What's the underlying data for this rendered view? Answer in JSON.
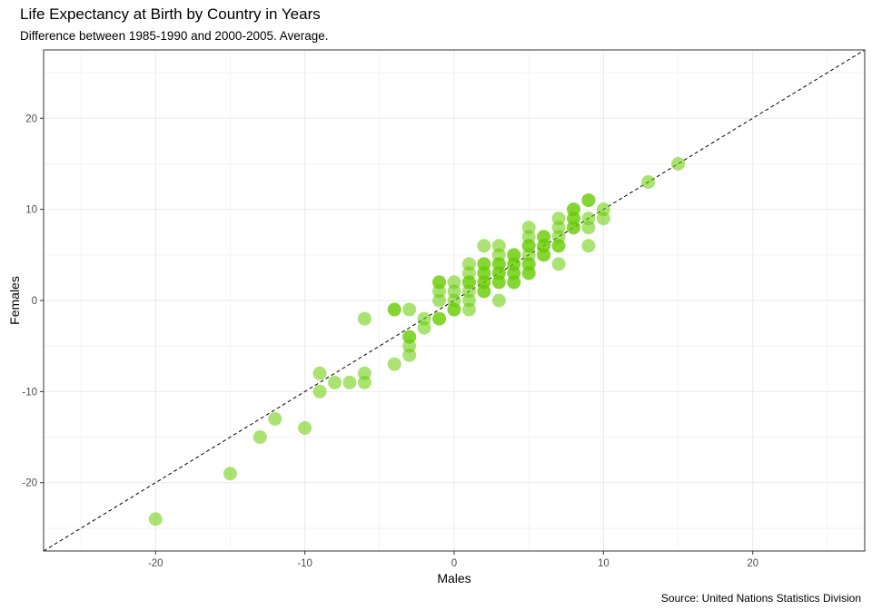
{
  "chart_data": {
    "type": "scatter",
    "title": "Life Expectancy at Birth by Country in Years",
    "subtitle": "Difference between 1985-1990 and 2000-2005. Average.",
    "caption": "Source: United Nations Statistics Division",
    "xlabel": "Males",
    "ylabel": "Females",
    "xlim": [
      -27.5,
      27.5
    ],
    "ylim": [
      -27.5,
      27.5
    ],
    "x_ticks": [
      -20,
      -10,
      0,
      10,
      20
    ],
    "y_ticks": [
      -20,
      -10,
      0,
      10,
      20
    ],
    "grid": true,
    "reference_line": {
      "slope": 1,
      "intercept": 0,
      "style": "dashed"
    },
    "colors": {
      "point": "#66cc00",
      "reference_line": "#000000",
      "grid": "#ebebeb",
      "panel_border": "#333333"
    },
    "point_opacity": 0.55,
    "points": [
      {
        "x": -20,
        "y": -24
      },
      {
        "x": -15,
        "y": -19
      },
      {
        "x": -13,
        "y": -15
      },
      {
        "x": -12,
        "y": -13
      },
      {
        "x": -10,
        "y": -14
      },
      {
        "x": -9,
        "y": -10
      },
      {
        "x": -9,
        "y": -8
      },
      {
        "x": -8,
        "y": -9
      },
      {
        "x": -7,
        "y": -9
      },
      {
        "x": -6,
        "y": -9
      },
      {
        "x": -6,
        "y": -8
      },
      {
        "x": -6,
        "y": -2
      },
      {
        "x": -4,
        "y": -7
      },
      {
        "x": -4,
        "y": -1
      },
      {
        "x": -4,
        "y": -1
      },
      {
        "x": -3,
        "y": -6
      },
      {
        "x": -3,
        "y": -5
      },
      {
        "x": -3,
        "y": -4
      },
      {
        "x": -3,
        "y": -4
      },
      {
        "x": -3,
        "y": -1
      },
      {
        "x": -2,
        "y": -3
      },
      {
        "x": -2,
        "y": -2
      },
      {
        "x": -1,
        "y": -2
      },
      {
        "x": -1,
        "y": -2
      },
      {
        "x": -1,
        "y": 0
      },
      {
        "x": -1,
        "y": 1
      },
      {
        "x": -1,
        "y": 2
      },
      {
        "x": -1,
        "y": 2
      },
      {
        "x": 0,
        "y": -1
      },
      {
        "x": 0,
        "y": -1
      },
      {
        "x": 0,
        "y": 0
      },
      {
        "x": 0,
        "y": 1
      },
      {
        "x": 0,
        "y": 2
      },
      {
        "x": 1,
        "y": -1
      },
      {
        "x": 1,
        "y": 0
      },
      {
        "x": 1,
        "y": 1
      },
      {
        "x": 1,
        "y": 2
      },
      {
        "x": 1,
        "y": 2
      },
      {
        "x": 1,
        "y": 3
      },
      {
        "x": 1,
        "y": 4
      },
      {
        "x": 2,
        "y": 1
      },
      {
        "x": 2,
        "y": 1
      },
      {
        "x": 2,
        "y": 2
      },
      {
        "x": 2,
        "y": 2
      },
      {
        "x": 2,
        "y": 3
      },
      {
        "x": 2,
        "y": 3
      },
      {
        "x": 2,
        "y": 4
      },
      {
        "x": 2,
        "y": 4
      },
      {
        "x": 2,
        "y": 6
      },
      {
        "x": 3,
        "y": 0
      },
      {
        "x": 3,
        "y": 2
      },
      {
        "x": 3,
        "y": 2
      },
      {
        "x": 3,
        "y": 3
      },
      {
        "x": 3,
        "y": 3
      },
      {
        "x": 3,
        "y": 4
      },
      {
        "x": 3,
        "y": 4
      },
      {
        "x": 3,
        "y": 5
      },
      {
        "x": 3,
        "y": 6
      },
      {
        "x": 4,
        "y": 2
      },
      {
        "x": 4,
        "y": 2
      },
      {
        "x": 4,
        "y": 3
      },
      {
        "x": 4,
        "y": 3
      },
      {
        "x": 4,
        "y": 4
      },
      {
        "x": 4,
        "y": 4
      },
      {
        "x": 4,
        "y": 5
      },
      {
        "x": 4,
        "y": 5
      },
      {
        "x": 5,
        "y": 3
      },
      {
        "x": 5,
        "y": 3
      },
      {
        "x": 5,
        "y": 4
      },
      {
        "x": 5,
        "y": 4
      },
      {
        "x": 5,
        "y": 5
      },
      {
        "x": 5,
        "y": 6
      },
      {
        "x": 5,
        "y": 6
      },
      {
        "x": 5,
        "y": 7
      },
      {
        "x": 5,
        "y": 8
      },
      {
        "x": 6,
        "y": 5
      },
      {
        "x": 6,
        "y": 5
      },
      {
        "x": 6,
        "y": 6
      },
      {
        "x": 6,
        "y": 6
      },
      {
        "x": 6,
        "y": 7
      },
      {
        "x": 6,
        "y": 7
      },
      {
        "x": 7,
        "y": 4
      },
      {
        "x": 7,
        "y": 6
      },
      {
        "x": 7,
        "y": 6
      },
      {
        "x": 7,
        "y": 7
      },
      {
        "x": 7,
        "y": 8
      },
      {
        "x": 7,
        "y": 9
      },
      {
        "x": 8,
        "y": 8
      },
      {
        "x": 8,
        "y": 8
      },
      {
        "x": 8,
        "y": 9
      },
      {
        "x": 8,
        "y": 9
      },
      {
        "x": 8,
        "y": 10
      },
      {
        "x": 8,
        "y": 10
      },
      {
        "x": 9,
        "y": 6
      },
      {
        "x": 9,
        "y": 8
      },
      {
        "x": 9,
        "y": 9
      },
      {
        "x": 9,
        "y": 11
      },
      {
        "x": 9,
        "y": 11
      },
      {
        "x": 10,
        "y": 9
      },
      {
        "x": 10,
        "y": 10
      },
      {
        "x": 13,
        "y": 13
      },
      {
        "x": 15,
        "y": 15
      }
    ]
  }
}
